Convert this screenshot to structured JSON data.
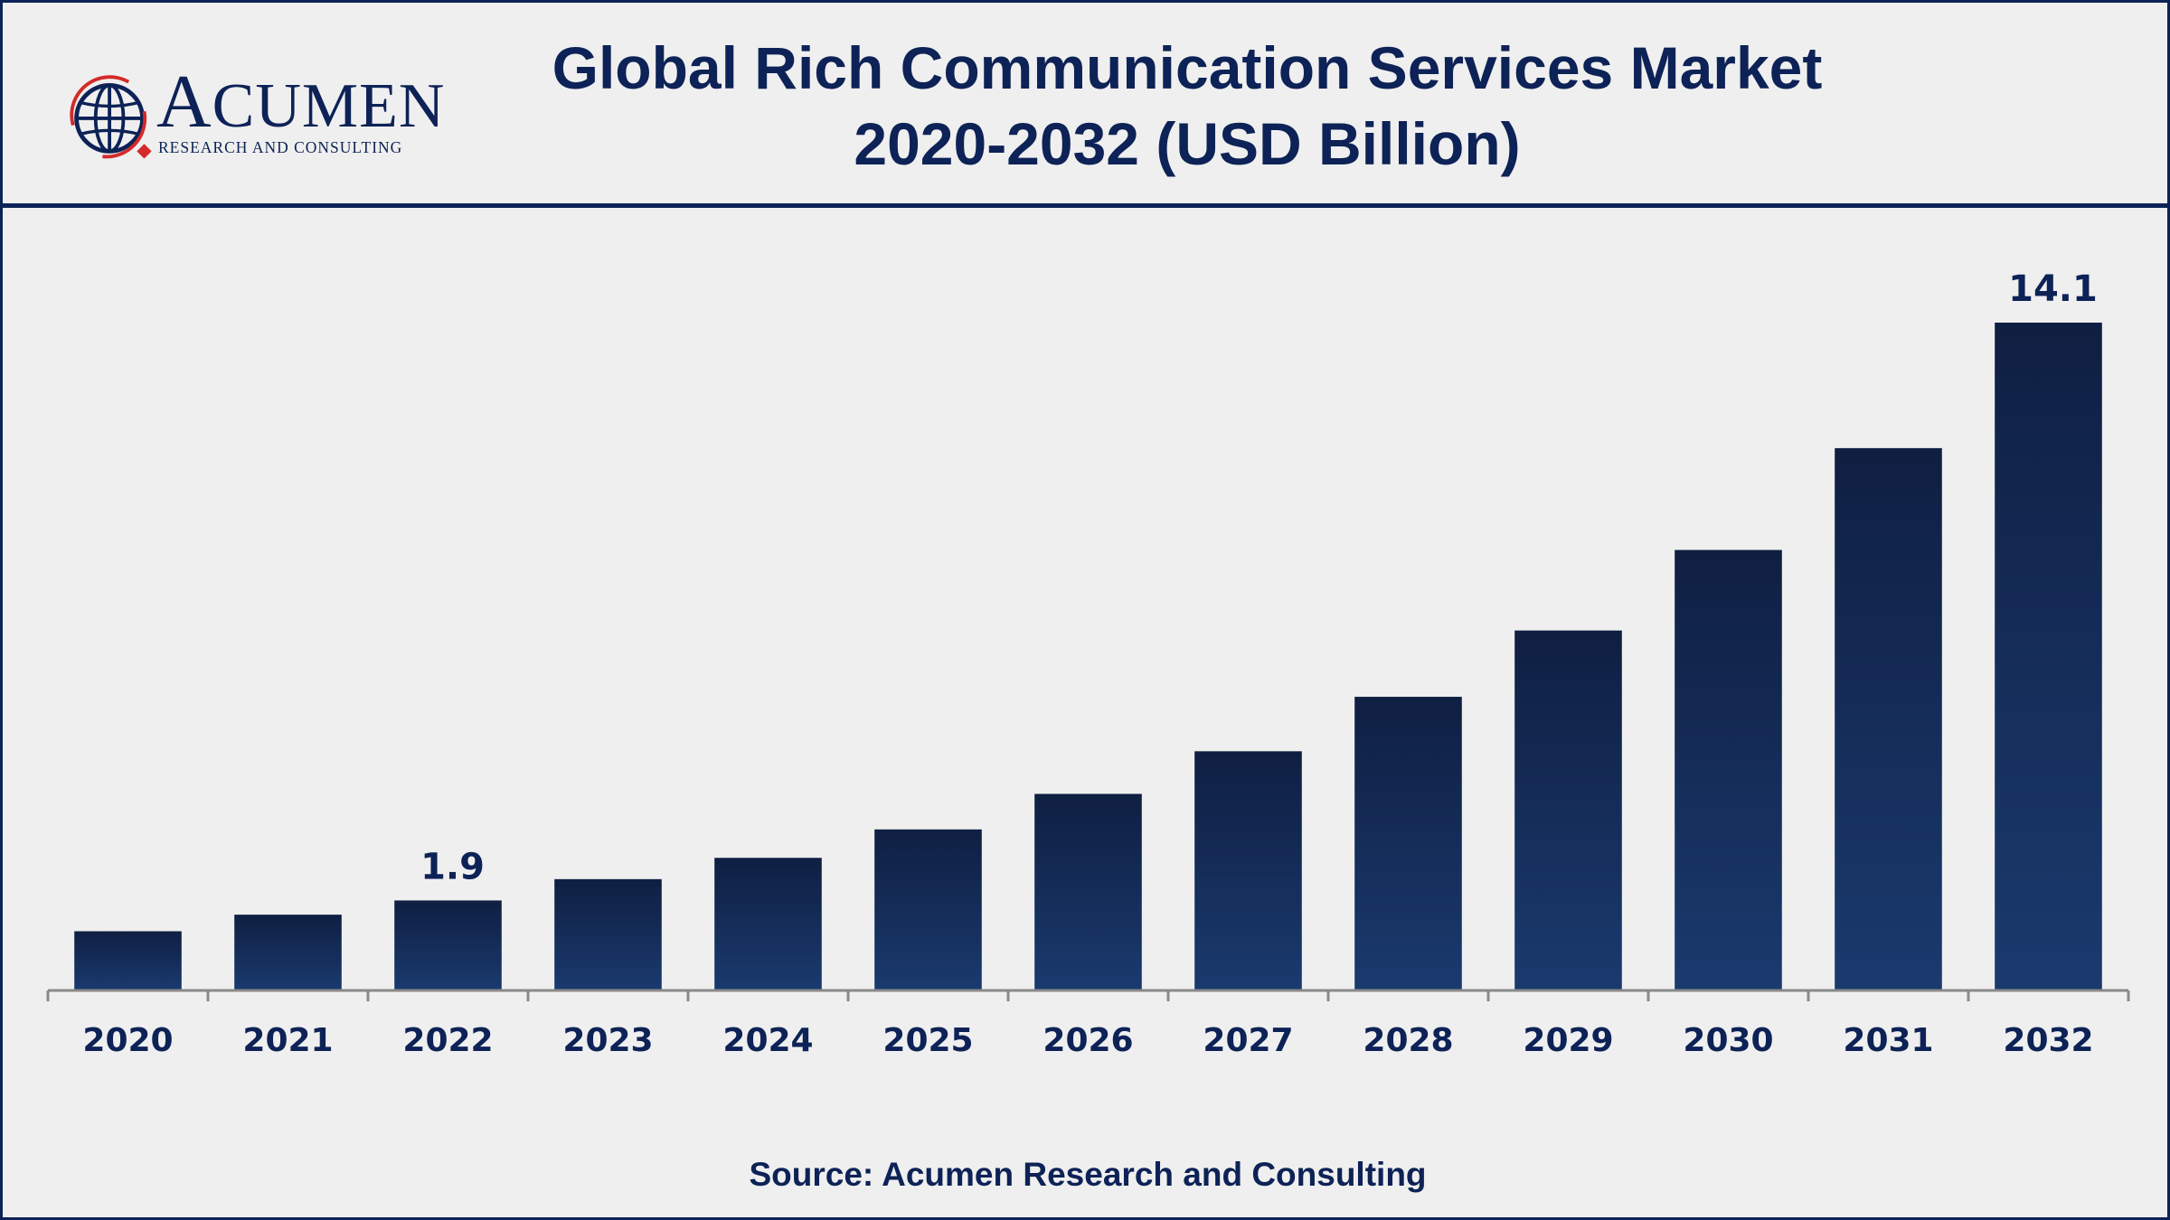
{
  "header": {
    "title_line1": "Global Rich Communication Services Market",
    "title_line2": "2020-2032 (USD Billion)"
  },
  "logo": {
    "name": "ACUMEN",
    "tagline": "RESEARCH AND CONSULTING"
  },
  "footer": {
    "source": "Source: Acumen Research and Consulting"
  },
  "colors": {
    "brand": "#0d2256",
    "bar_top": "#0f1f42",
    "bar_bottom": "#1a3a6e",
    "axis": "#8a8a8a",
    "background": "#efefef"
  },
  "chart_data": {
    "type": "bar",
    "categories": [
      "2020",
      "2021",
      "2022",
      "2023",
      "2024",
      "2025",
      "2026",
      "2027",
      "2028",
      "2029",
      "2030",
      "2031",
      "2032"
    ],
    "values": [
      1.25,
      1.6,
      1.9,
      2.35,
      2.8,
      3.4,
      4.15,
      5.05,
      6.2,
      7.6,
      9.3,
      11.45,
      14.1
    ],
    "data_labels": [
      {
        "category": "2022",
        "text": "1.9"
      },
      {
        "category": "2032",
        "text": "14.1"
      }
    ],
    "ylim": [
      0,
      14.1
    ],
    "grid": false,
    "legend": "none"
  }
}
